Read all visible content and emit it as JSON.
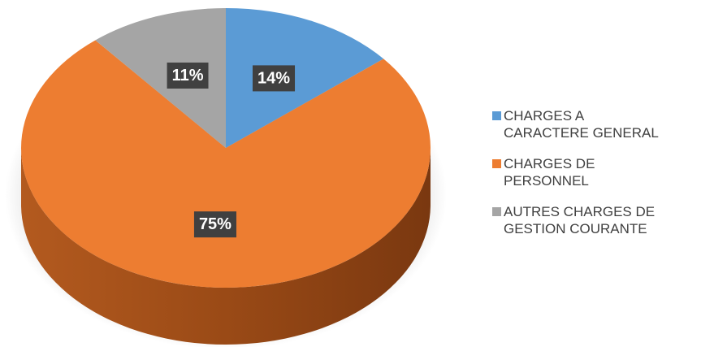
{
  "chart_data": {
    "type": "pie",
    "categories": [
      "CHARGES A\nCARACTERE GENERAL",
      "CHARGES DE\nPERSONNEL",
      "AUTRES CHARGES DE\nGESTION COURANTE"
    ],
    "values": [
      14,
      75,
      11
    ],
    "value_labels": [
      "14%",
      "75%",
      "11%"
    ],
    "colors": [
      "#5b9bd5",
      "#ed7d31",
      "#a5a5a5"
    ],
    "legend": "right"
  }
}
